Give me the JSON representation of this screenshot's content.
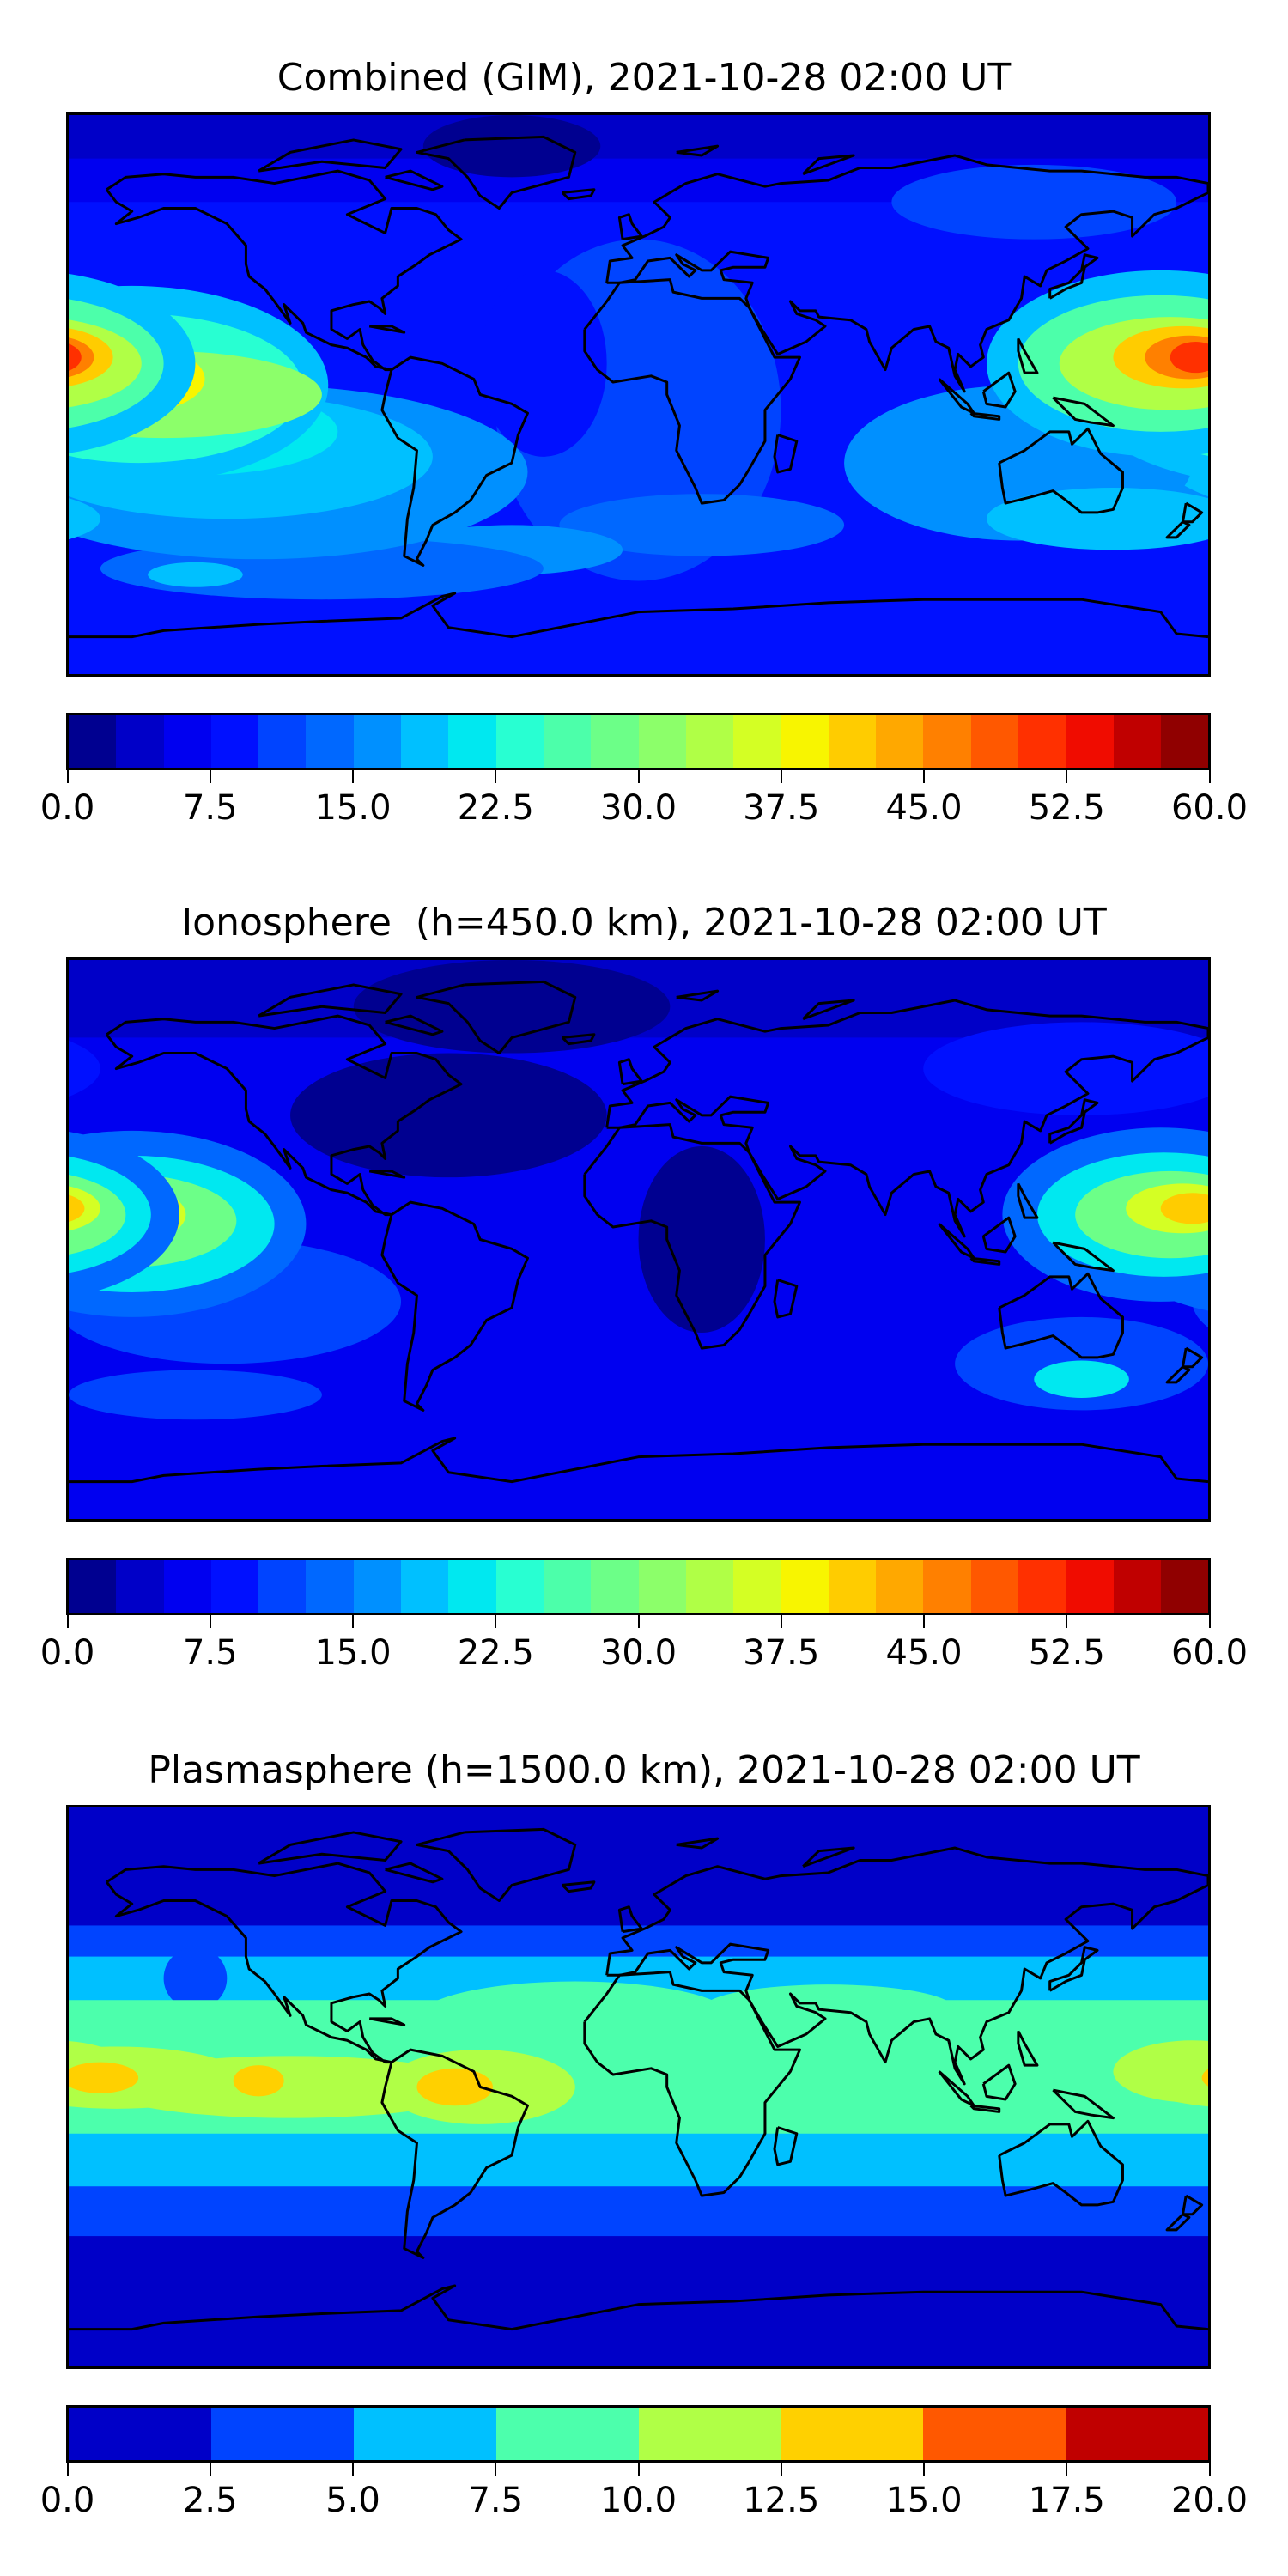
{
  "panels": [
    {
      "title": "Combined (GIM), 2021-10-28 02:00 UT",
      "colorbar": {
        "range": [
          0,
          60
        ],
        "ticks": [
          "0.0",
          "7.5",
          "15.0",
          "22.5",
          "30.0",
          "37.5",
          "45.0",
          "52.5",
          "60.0"
        ],
        "colors": [
          "#000090",
          "#0000c8",
          "#0000f0",
          "#0010ff",
          "#0044ff",
          "#0068ff",
          "#0090ff",
          "#00c0ff",
          "#00e8f0",
          "#28ffd2",
          "#4cffaa",
          "#6cff88",
          "#8cff6a",
          "#b0ff46",
          "#d4ff24",
          "#f8f500",
          "#ffcc00",
          "#ffa800",
          "#ff8000",
          "#ff5800",
          "#ff3000",
          "#f00c00",
          "#c00000",
          "#900000"
        ]
      }
    },
    {
      "title": "Ionosphere  (h=450.0 km), 2021-10-28 02:00 UT",
      "colorbar": {
        "range": [
          0,
          60
        ],
        "ticks": [
          "0.0",
          "7.5",
          "15.0",
          "22.5",
          "30.0",
          "37.5",
          "45.0",
          "52.5",
          "60.0"
        ],
        "colors": [
          "#000090",
          "#0000c8",
          "#0000f0",
          "#0010ff",
          "#0044ff",
          "#0068ff",
          "#0090ff",
          "#00c0ff",
          "#00e8f0",
          "#28ffd2",
          "#4cffaa",
          "#6cff88",
          "#8cff6a",
          "#b0ff46",
          "#d4ff24",
          "#f8f500",
          "#ffcc00",
          "#ffa800",
          "#ff8000",
          "#ff5800",
          "#ff3000",
          "#f00c00",
          "#c00000",
          "#900000"
        ]
      }
    },
    {
      "title": "Plasmasphere (h=1500.0 km), 2021-10-28 02:00 UT",
      "colorbar": {
        "range": [
          0,
          20
        ],
        "ticks": [
          "0.0",
          "2.5",
          "5.0",
          "7.5",
          "10.0",
          "12.5",
          "15.0",
          "17.5",
          "20.0"
        ],
        "colors": [
          "#0000c8",
          "#0044ff",
          "#00c0ff",
          "#4cffac",
          "#b0ff46",
          "#ffd000",
          "#ff5800",
          "#c00000"
        ]
      }
    }
  ]
}
